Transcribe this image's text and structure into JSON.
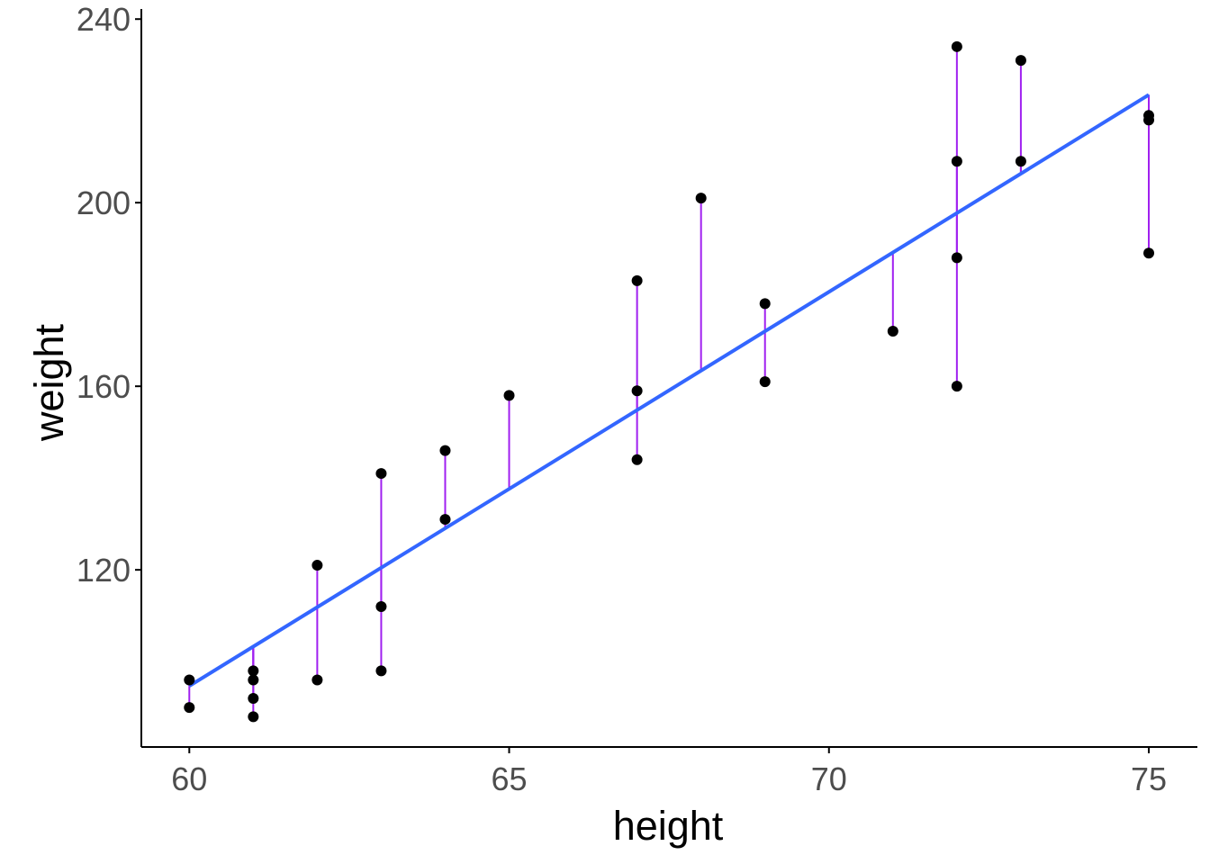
{
  "chart_data": {
    "type": "scatter",
    "x_label": "height",
    "y_label": "weight",
    "x": [
      60,
      60,
      61,
      61,
      61,
      61,
      62,
      62,
      63,
      63,
      63,
      64,
      64,
      65,
      67,
      67,
      67,
      68,
      69,
      69,
      71,
      72,
      72,
      72,
      72,
      73,
      73,
      75,
      75,
      75
    ],
    "y": [
      96,
      90,
      98,
      96,
      92,
      88,
      121,
      96,
      141,
      112,
      98,
      146,
      131,
      158,
      183,
      159,
      144,
      201,
      178,
      161,
      172,
      234,
      209,
      188,
      160,
      231,
      209,
      219,
      218,
      189
    ],
    "color": "#000000",
    "fit": {
      "x": [
        60,
        75
      ],
      "y": [
        94.7,
        223.5
      ],
      "color": "#3366ff"
    },
    "residual_color": "#a020f0",
    "xlim": [
      59.25,
      75.76
    ],
    "ylim": [
      81.4,
      242.2
    ],
    "xticks": [
      60,
      65,
      70,
      75
    ],
    "yticks": [
      120,
      160,
      200,
      240
    ]
  }
}
